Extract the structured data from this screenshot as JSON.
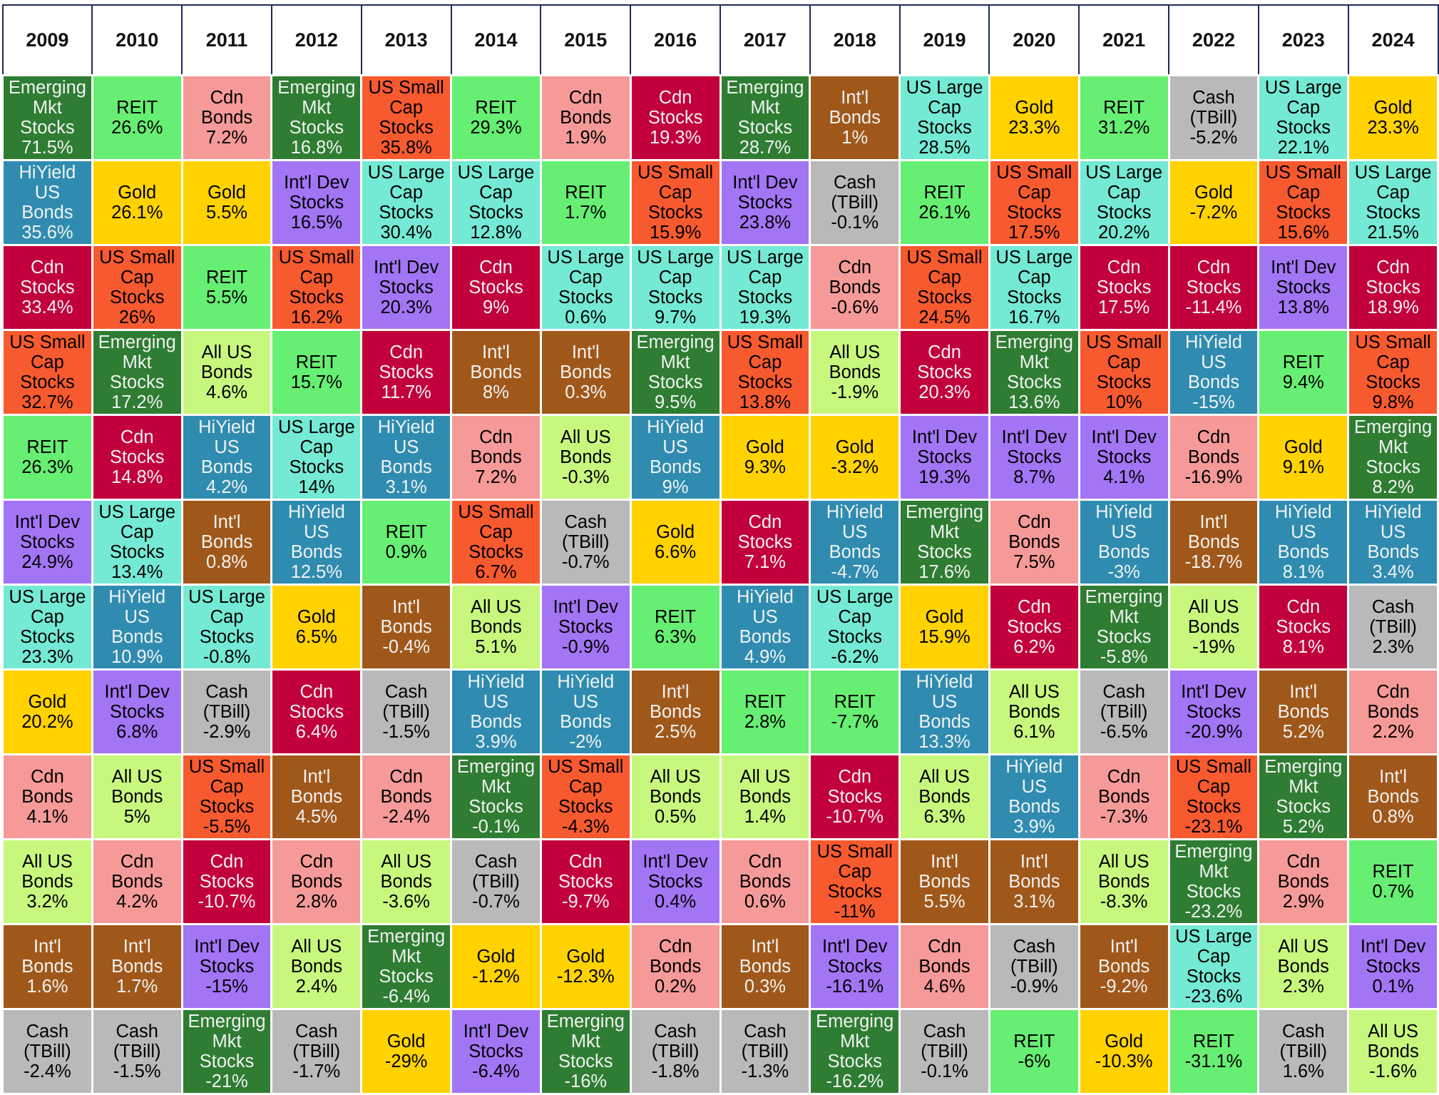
{
  "chart_data": {
    "type": "table",
    "title": "",
    "years": [
      "2009",
      "2010",
      "2011",
      "2012",
      "2013",
      "2014",
      "2015",
      "2016",
      "2017",
      "2018",
      "2019",
      "2020",
      "2021",
      "2022",
      "2023",
      "2024"
    ],
    "colors": {
      "Emerging Mkt Stocks": "#2e7d32",
      "REIT": "#66ef72",
      "Cdn Bonds": "#f59a98",
      "US Small Cap Stocks": "#f75a2f",
      "Cdn Stocks": "#c2003b",
      "Int'l Bonds": "#a0581a",
      "US Large Cap Stocks": "#74ead4",
      "Gold": "#ffd200",
      "Cash (TBill)": "#b9b9b9",
      "HiYield US Bonds": "#2f8cb0",
      "Int'l Dev Stocks": "#a275f5",
      "All US Bonds": "#c8f77e"
    },
    "rankings": [
      [
        {
          "asset": "Emerging Mkt Stocks",
          "return": "71.5%"
        },
        {
          "asset": "HiYield US Bonds",
          "return": "35.6%"
        },
        {
          "asset": "Cdn Stocks",
          "return": "33.4%"
        },
        {
          "asset": "US Small Cap Stocks",
          "return": "32.7%"
        },
        {
          "asset": "REIT",
          "return": "26.3%"
        },
        {
          "asset": "Int'l Dev Stocks",
          "return": "24.9%"
        },
        {
          "asset": "US Large Cap Stocks",
          "return": "23.3%"
        },
        {
          "asset": "Gold",
          "return": "20.2%"
        },
        {
          "asset": "Cdn Bonds",
          "return": "4.1%"
        },
        {
          "asset": "All US Bonds",
          "return": "3.2%"
        },
        {
          "asset": "Int'l Bonds",
          "return": "1.6%"
        },
        {
          "asset": "Cash (TBill)",
          "return": "-2.4%"
        }
      ],
      [
        {
          "asset": "REIT",
          "return": "26.6%"
        },
        {
          "asset": "Gold",
          "return": "26.1%"
        },
        {
          "asset": "US Small Cap Stocks",
          "return": "26%"
        },
        {
          "asset": "Emerging Mkt Stocks",
          "return": "17.2%"
        },
        {
          "asset": "Cdn Stocks",
          "return": "14.8%"
        },
        {
          "asset": "US Large Cap Stocks",
          "return": "13.4%"
        },
        {
          "asset": "HiYield US Bonds",
          "return": "10.9%"
        },
        {
          "asset": "Int'l Dev Stocks",
          "return": "6.8%"
        },
        {
          "asset": "All US Bonds",
          "return": "5%"
        },
        {
          "asset": "Cdn Bonds",
          "return": "4.2%"
        },
        {
          "asset": "Int'l Bonds",
          "return": "1.7%"
        },
        {
          "asset": "Cash (TBill)",
          "return": "-1.5%"
        }
      ],
      [
        {
          "asset": "Cdn Bonds",
          "return": "7.2%"
        },
        {
          "asset": "Gold",
          "return": "5.5%"
        },
        {
          "asset": "REIT",
          "return": "5.5%"
        },
        {
          "asset": "All US Bonds",
          "return": "4.6%"
        },
        {
          "asset": "HiYield US Bonds",
          "return": "4.2%"
        },
        {
          "asset": "Int'l Bonds",
          "return": "0.8%"
        },
        {
          "asset": "US Large Cap Stocks",
          "return": "-0.8%"
        },
        {
          "asset": "Cash (TBill)",
          "return": "-2.9%"
        },
        {
          "asset": "US Small Cap Stocks",
          "return": "-5.5%"
        },
        {
          "asset": "Cdn Stocks",
          "return": "-10.7%"
        },
        {
          "asset": "Int'l Dev Stocks",
          "return": "-15%"
        },
        {
          "asset": "Emerging Mkt Stocks",
          "return": "-21%"
        }
      ],
      [
        {
          "asset": "Emerging Mkt Stocks",
          "return": "16.8%"
        },
        {
          "asset": "Int'l Dev Stocks",
          "return": "16.5%"
        },
        {
          "asset": "US Small Cap Stocks",
          "return": "16.2%"
        },
        {
          "asset": "REIT",
          "return": "15.7%"
        },
        {
          "asset": "US Large Cap Stocks",
          "return": "14%"
        },
        {
          "asset": "HiYield US Bonds",
          "return": "12.5%"
        },
        {
          "asset": "Gold",
          "return": "6.5%"
        },
        {
          "asset": "Cdn Stocks",
          "return": "6.4%"
        },
        {
          "asset": "Int'l Bonds",
          "return": "4.5%"
        },
        {
          "asset": "Cdn Bonds",
          "return": "2.8%"
        },
        {
          "asset": "All US Bonds",
          "return": "2.4%"
        },
        {
          "asset": "Cash (TBill)",
          "return": "-1.7%"
        }
      ],
      [
        {
          "asset": "US Small Cap Stocks",
          "return": "35.8%"
        },
        {
          "asset": "US Large Cap Stocks",
          "return": "30.4%"
        },
        {
          "asset": "Int'l Dev Stocks",
          "return": "20.3%"
        },
        {
          "asset": "Cdn Stocks",
          "return": "11.7%"
        },
        {
          "asset": "HiYield US Bonds",
          "return": "3.1%"
        },
        {
          "asset": "REIT",
          "return": "0.9%"
        },
        {
          "asset": "Int'l Bonds",
          "return": "-0.4%"
        },
        {
          "asset": "Cash (TBill)",
          "return": "-1.5%"
        },
        {
          "asset": "Cdn Bonds",
          "return": "-2.4%"
        },
        {
          "asset": "All US Bonds",
          "return": "-3.6%"
        },
        {
          "asset": "Emerging Mkt Stocks",
          "return": "-6.4%"
        },
        {
          "asset": "Gold",
          "return": "-29%"
        }
      ],
      [
        {
          "asset": "REIT",
          "return": "29.3%"
        },
        {
          "asset": "US Large Cap Stocks",
          "return": "12.8%"
        },
        {
          "asset": "Cdn Stocks",
          "return": "9%"
        },
        {
          "asset": "Int'l Bonds",
          "return": "8%"
        },
        {
          "asset": "Cdn Bonds",
          "return": "7.2%"
        },
        {
          "asset": "US Small Cap Stocks",
          "return": "6.7%"
        },
        {
          "asset": "All US Bonds",
          "return": "5.1%"
        },
        {
          "asset": "HiYield US Bonds",
          "return": "3.9%"
        },
        {
          "asset": "Emerging Mkt Stocks",
          "return": "-0.1%"
        },
        {
          "asset": "Cash (TBill)",
          "return": "-0.7%"
        },
        {
          "asset": "Gold",
          "return": "-1.2%"
        },
        {
          "asset": "Int'l Dev Stocks",
          "return": "-6.4%"
        }
      ],
      [
        {
          "asset": "Cdn Bonds",
          "return": "1.9%"
        },
        {
          "asset": "REIT",
          "return": "1.7%"
        },
        {
          "asset": "US Large Cap Stocks",
          "return": "0.6%"
        },
        {
          "asset": "Int'l Bonds",
          "return": "0.3%"
        },
        {
          "asset": "All US Bonds",
          "return": "-0.3%"
        },
        {
          "asset": "Cash (TBill)",
          "return": "-0.7%"
        },
        {
          "asset": "Int'l Dev Stocks",
          "return": "-0.9%"
        },
        {
          "asset": "HiYield US Bonds",
          "return": "-2%"
        },
        {
          "asset": "US Small Cap Stocks",
          "return": "-4.3%"
        },
        {
          "asset": "Cdn Stocks",
          "return": "-9.7%"
        },
        {
          "asset": "Gold",
          "return": "-12.3%"
        },
        {
          "asset": "Emerging Mkt Stocks",
          "return": "-16%"
        }
      ],
      [
        {
          "asset": "Cdn Stocks",
          "return": "19.3%"
        },
        {
          "asset": "US Small Cap Stocks",
          "return": "15.9%"
        },
        {
          "asset": "US Large Cap Stocks",
          "return": "9.7%"
        },
        {
          "asset": "Emerging Mkt Stocks",
          "return": "9.5%"
        },
        {
          "asset": "HiYield US Bonds",
          "return": "9%"
        },
        {
          "asset": "Gold",
          "return": "6.6%"
        },
        {
          "asset": "REIT",
          "return": "6.3%"
        },
        {
          "asset": "Int'l Bonds",
          "return": "2.5%"
        },
        {
          "asset": "All US Bonds",
          "return": "0.5%"
        },
        {
          "asset": "Int'l Dev Stocks",
          "return": "0.4%"
        },
        {
          "asset": "Cdn Bonds",
          "return": "0.2%"
        },
        {
          "asset": "Cash (TBill)",
          "return": "-1.8%"
        }
      ],
      [
        {
          "asset": "Emerging Mkt Stocks",
          "return": "28.7%"
        },
        {
          "asset": "Int'l Dev Stocks",
          "return": "23.8%"
        },
        {
          "asset": "US Large Cap Stocks",
          "return": "19.3%"
        },
        {
          "asset": "US Small Cap Stocks",
          "return": "13.8%"
        },
        {
          "asset": "Gold",
          "return": "9.3%"
        },
        {
          "asset": "Cdn Stocks",
          "return": "7.1%"
        },
        {
          "asset": "HiYield US Bonds",
          "return": "4.9%"
        },
        {
          "asset": "REIT",
          "return": "2.8%"
        },
        {
          "asset": "All US Bonds",
          "return": "1.4%"
        },
        {
          "asset": "Cdn Bonds",
          "return": "0.6%"
        },
        {
          "asset": "Int'l Bonds",
          "return": "0.3%"
        },
        {
          "asset": "Cash (TBill)",
          "return": "-1.3%"
        }
      ],
      [
        {
          "asset": "Int'l Bonds",
          "return": "1%"
        },
        {
          "asset": "Cash (TBill)",
          "return": "-0.1%"
        },
        {
          "asset": "Cdn Bonds",
          "return": "-0.6%"
        },
        {
          "asset": "All US Bonds",
          "return": "-1.9%"
        },
        {
          "asset": "Gold",
          "return": "-3.2%"
        },
        {
          "asset": "HiYield US Bonds",
          "return": "-4.7%"
        },
        {
          "asset": "US Large Cap Stocks",
          "return": "-6.2%"
        },
        {
          "asset": "REIT",
          "return": "-7.7%"
        },
        {
          "asset": "Cdn Stocks",
          "return": "-10.7%"
        },
        {
          "asset": "US Small Cap Stocks",
          "return": "-11%"
        },
        {
          "asset": "Int'l Dev Stocks",
          "return": "-16.1%"
        },
        {
          "asset": "Emerging Mkt Stocks",
          "return": "-16.2%"
        }
      ],
      [
        {
          "asset": "US Large Cap Stocks",
          "return": "28.5%"
        },
        {
          "asset": "REIT",
          "return": "26.1%"
        },
        {
          "asset": "US Small Cap Stocks",
          "return": "24.5%"
        },
        {
          "asset": "Cdn Stocks",
          "return": "20.3%"
        },
        {
          "asset": "Int'l Dev Stocks",
          "return": "19.3%"
        },
        {
          "asset": "Emerging Mkt Stocks",
          "return": "17.6%"
        },
        {
          "asset": "Gold",
          "return": "15.9%"
        },
        {
          "asset": "HiYield US Bonds",
          "return": "13.3%"
        },
        {
          "asset": "All US Bonds",
          "return": "6.3%"
        },
        {
          "asset": "Int'l Bonds",
          "return": "5.5%"
        },
        {
          "asset": "Cdn Bonds",
          "return": "4.6%"
        },
        {
          "asset": "Cash (TBill)",
          "return": "-0.1%"
        }
      ],
      [
        {
          "asset": "Gold",
          "return": "23.3%"
        },
        {
          "asset": "US Small Cap Stocks",
          "return": "17.5%"
        },
        {
          "asset": "US Large Cap Stocks",
          "return": "16.7%"
        },
        {
          "asset": "Emerging Mkt Stocks",
          "return": "13.6%"
        },
        {
          "asset": "Int'l Dev Stocks",
          "return": "8.7%"
        },
        {
          "asset": "Cdn Bonds",
          "return": "7.5%"
        },
        {
          "asset": "Cdn Stocks",
          "return": "6.2%"
        },
        {
          "asset": "All US Bonds",
          "return": "6.1%"
        },
        {
          "asset": "HiYield US Bonds",
          "return": "3.9%"
        },
        {
          "asset": "Int'l Bonds",
          "return": "3.1%"
        },
        {
          "asset": "Cash (TBill)",
          "return": "-0.9%"
        },
        {
          "asset": "REIT",
          "return": "-6%"
        }
      ],
      [
        {
          "asset": "REIT",
          "return": "31.2%"
        },
        {
          "asset": "US Large Cap Stocks",
          "return": "20.2%"
        },
        {
          "asset": "Cdn Stocks",
          "return": "17.5%"
        },
        {
          "asset": "US Small Cap Stocks",
          "return": "10%"
        },
        {
          "asset": "Int'l Dev Stocks",
          "return": "4.1%"
        },
        {
          "asset": "HiYield US Bonds",
          "return": "-3%"
        },
        {
          "asset": "Emerging Mkt Stocks",
          "return": "-5.8%"
        },
        {
          "asset": "Cash (TBill)",
          "return": "-6.5%"
        },
        {
          "asset": "Cdn Bonds",
          "return": "-7.3%"
        },
        {
          "asset": "All US Bonds",
          "return": "-8.3%"
        },
        {
          "asset": "Int'l Bonds",
          "return": "-9.2%"
        },
        {
          "asset": "Gold",
          "return": "-10.3%"
        }
      ],
      [
        {
          "asset": "Cash (TBill)",
          "return": "-5.2%"
        },
        {
          "asset": "Gold",
          "return": "-7.2%"
        },
        {
          "asset": "Cdn Stocks",
          "return": "-11.4%"
        },
        {
          "asset": "HiYield US Bonds",
          "return": "-15%"
        },
        {
          "asset": "Cdn Bonds",
          "return": "-16.9%"
        },
        {
          "asset": "Int'l Bonds",
          "return": "-18.7%"
        },
        {
          "asset": "All US Bonds",
          "return": "-19%"
        },
        {
          "asset": "Int'l Dev Stocks",
          "return": "-20.9%"
        },
        {
          "asset": "US Small Cap Stocks",
          "return": "-23.1%"
        },
        {
          "asset": "Emerging Mkt Stocks",
          "return": "-23.2%"
        },
        {
          "asset": "US Large Cap Stocks",
          "return": "-23.6%"
        },
        {
          "asset": "REIT",
          "return": "-31.1%"
        }
      ],
      [
        {
          "asset": "US Large Cap Stocks",
          "return": "22.1%"
        },
        {
          "asset": "US Small Cap Stocks",
          "return": "15.6%"
        },
        {
          "asset": "Int'l Dev Stocks",
          "return": "13.8%"
        },
        {
          "asset": "REIT",
          "return": "9.4%"
        },
        {
          "asset": "Gold",
          "return": "9.1%"
        },
        {
          "asset": "HiYield US Bonds",
          "return": "8.1%"
        },
        {
          "asset": "Cdn Stocks",
          "return": "8.1%"
        },
        {
          "asset": "Int'l Bonds",
          "return": "5.2%"
        },
        {
          "asset": "Emerging Mkt Stocks",
          "return": "5.2%"
        },
        {
          "asset": "Cdn Bonds",
          "return": "2.9%"
        },
        {
          "asset": "All US Bonds",
          "return": "2.3%"
        },
        {
          "asset": "Cash (TBill)",
          "return": "1.6%"
        }
      ],
      [
        {
          "asset": "Gold",
          "return": "23.3%"
        },
        {
          "asset": "US Large Cap Stocks",
          "return": "21.5%"
        },
        {
          "asset": "Cdn Stocks",
          "return": "18.9%"
        },
        {
          "asset": "US Small Cap Stocks",
          "return": "9.8%"
        },
        {
          "asset": "Emerging Mkt Stocks",
          "return": "8.2%"
        },
        {
          "asset": "HiYield US Bonds",
          "return": "3.4%"
        },
        {
          "asset": "Cash (TBill)",
          "return": "2.3%"
        },
        {
          "asset": "Cdn Bonds",
          "return": "2.2%"
        },
        {
          "asset": "Int'l Bonds",
          "return": "0.8%"
        },
        {
          "asset": "REIT",
          "return": "0.7%"
        },
        {
          "asset": "Int'l Dev Stocks",
          "return": "0.1%"
        },
        {
          "asset": "All US Bonds",
          "return": "-1.6%"
        }
      ]
    ]
  }
}
